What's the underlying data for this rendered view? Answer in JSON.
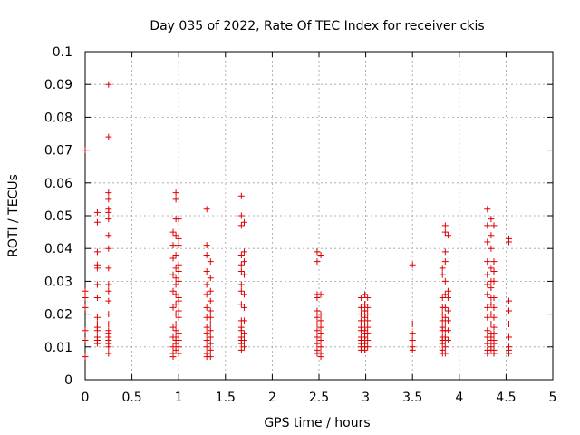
{
  "chart_data": {
    "type": "scatter",
    "title": "Day 035 of 2022, Rate Of TEC Index for receiver ckis",
    "xlabel": "GPS time / hours",
    "ylabel": "ROTI / TECUs",
    "xlim": [
      0,
      5
    ],
    "ylim": [
      0,
      0.1
    ],
    "grid": true,
    "marker": "+",
    "x_ticks": [
      {
        "value": 0,
        "label": "0"
      },
      {
        "value": 0.5,
        "label": "0.5"
      },
      {
        "value": 1,
        "label": "1"
      },
      {
        "value": 1.5,
        "label": "1.5"
      },
      {
        "value": 2,
        "label": "2"
      },
      {
        "value": 2.5,
        "label": "2.5"
      },
      {
        "value": 3,
        "label": "3"
      },
      {
        "value": 3.5,
        "label": "3.5"
      },
      {
        "value": 4,
        "label": "4"
      },
      {
        "value": 4.5,
        "label": "4.5"
      },
      {
        "value": 5,
        "label": "5"
      }
    ],
    "y_ticks": [
      {
        "value": 0,
        "label": "0"
      },
      {
        "value": 0.01,
        "label": "0.01"
      },
      {
        "value": 0.02,
        "label": "0.02"
      },
      {
        "value": 0.03,
        "label": "0.03"
      },
      {
        "value": 0.04,
        "label": "0.04"
      },
      {
        "value": 0.05,
        "label": "0.05"
      },
      {
        "value": 0.06,
        "label": "0.06"
      },
      {
        "value": 0.07,
        "label": "0.07"
      },
      {
        "value": 0.08,
        "label": "0.08"
      },
      {
        "value": 0.09,
        "label": "0.09"
      },
      {
        "value": 0.1,
        "label": "0.1"
      }
    ],
    "series": [
      {
        "name": "ROTI",
        "color": "#e00000",
        "points": [
          [
            0.0,
            0.07
          ],
          [
            0.0,
            0.027
          ],
          [
            0.0,
            0.025
          ],
          [
            0.0,
            0.022
          ],
          [
            0.0,
            0.015
          ],
          [
            0.0,
            0.012
          ],
          [
            0.0,
            0.007
          ],
          [
            0.13,
            0.051
          ],
          [
            0.13,
            0.048
          ],
          [
            0.13,
            0.039
          ],
          [
            0.13,
            0.035
          ],
          [
            0.13,
            0.034
          ],
          [
            0.13,
            0.029
          ],
          [
            0.13,
            0.025
          ],
          [
            0.13,
            0.019
          ],
          [
            0.13,
            0.017
          ],
          [
            0.13,
            0.016
          ],
          [
            0.13,
            0.015
          ],
          [
            0.13,
            0.013
          ],
          [
            0.13,
            0.012
          ],
          [
            0.13,
            0.011
          ],
          [
            0.25,
            0.09
          ],
          [
            0.25,
            0.074
          ],
          [
            0.25,
            0.057
          ],
          [
            0.25,
            0.055
          ],
          [
            0.25,
            0.052
          ],
          [
            0.25,
            0.051
          ],
          [
            0.25,
            0.049
          ],
          [
            0.25,
            0.044
          ],
          [
            0.25,
            0.04
          ],
          [
            0.25,
            0.034
          ],
          [
            0.25,
            0.029
          ],
          [
            0.25,
            0.027
          ],
          [
            0.25,
            0.024
          ],
          [
            0.25,
            0.02
          ],
          [
            0.25,
            0.017
          ],
          [
            0.25,
            0.015
          ],
          [
            0.25,
            0.014
          ],
          [
            0.25,
            0.013
          ],
          [
            0.25,
            0.012
          ],
          [
            0.25,
            0.011
          ],
          [
            0.25,
            0.01
          ],
          [
            0.25,
            0.008
          ],
          [
            0.94,
            0.045
          ],
          [
            0.94,
            0.041
          ],
          [
            0.94,
            0.037
          ],
          [
            0.94,
            0.032
          ],
          [
            0.94,
            0.027
          ],
          [
            0.94,
            0.022
          ],
          [
            0.94,
            0.016
          ],
          [
            0.94,
            0.013
          ],
          [
            0.94,
            0.01
          ],
          [
            0.94,
            0.008
          ],
          [
            0.94,
            0.007
          ],
          [
            0.97,
            0.057
          ],
          [
            0.97,
            0.055
          ],
          [
            0.97,
            0.049
          ],
          [
            0.97,
            0.044
          ],
          [
            0.97,
            0.038
          ],
          [
            0.97,
            0.034
          ],
          [
            0.97,
            0.031
          ],
          [
            0.97,
            0.029
          ],
          [
            0.97,
            0.026
          ],
          [
            0.97,
            0.023
          ],
          [
            0.97,
            0.02
          ],
          [
            0.97,
            0.017
          ],
          [
            0.97,
            0.015
          ],
          [
            0.97,
            0.013
          ],
          [
            0.97,
            0.012
          ],
          [
            0.97,
            0.011
          ],
          [
            0.97,
            0.009
          ],
          [
            1.0,
            0.049
          ],
          [
            1.0,
            0.043
          ],
          [
            1.0,
            0.041
          ],
          [
            1.0,
            0.035
          ],
          [
            1.0,
            0.033
          ],
          [
            1.0,
            0.03
          ],
          [
            1.0,
            0.025
          ],
          [
            1.0,
            0.024
          ],
          [
            1.0,
            0.021
          ],
          [
            1.0,
            0.019
          ],
          [
            1.0,
            0.014
          ],
          [
            1.0,
            0.012
          ],
          [
            1.0,
            0.01
          ],
          [
            1.0,
            0.008
          ],
          [
            1.3,
            0.052
          ],
          [
            1.3,
            0.041
          ],
          [
            1.3,
            0.038
          ],
          [
            1.3,
            0.033
          ],
          [
            1.3,
            0.029
          ],
          [
            1.3,
            0.026
          ],
          [
            1.3,
            0.022
          ],
          [
            1.3,
            0.019
          ],
          [
            1.3,
            0.016
          ],
          [
            1.3,
            0.014
          ],
          [
            1.3,
            0.012
          ],
          [
            1.3,
            0.01
          ],
          [
            1.3,
            0.008
          ],
          [
            1.3,
            0.007
          ],
          [
            1.34,
            0.036
          ],
          [
            1.34,
            0.031
          ],
          [
            1.34,
            0.027
          ],
          [
            1.34,
            0.024
          ],
          [
            1.34,
            0.021
          ],
          [
            1.34,
            0.019
          ],
          [
            1.34,
            0.017
          ],
          [
            1.34,
            0.015
          ],
          [
            1.34,
            0.013
          ],
          [
            1.34,
            0.011
          ],
          [
            1.34,
            0.009
          ],
          [
            1.34,
            0.007
          ],
          [
            1.67,
            0.056
          ],
          [
            1.67,
            0.05
          ],
          [
            1.67,
            0.047
          ],
          [
            1.67,
            0.038
          ],
          [
            1.67,
            0.035
          ],
          [
            1.67,
            0.033
          ],
          [
            1.67,
            0.029
          ],
          [
            1.67,
            0.027
          ],
          [
            1.67,
            0.023
          ],
          [
            1.67,
            0.018
          ],
          [
            1.67,
            0.016
          ],
          [
            1.67,
            0.015
          ],
          [
            1.67,
            0.013
          ],
          [
            1.67,
            0.012
          ],
          [
            1.67,
            0.011
          ],
          [
            1.67,
            0.009
          ],
          [
            1.7,
            0.048
          ],
          [
            1.7,
            0.039
          ],
          [
            1.7,
            0.036
          ],
          [
            1.7,
            0.032
          ],
          [
            1.7,
            0.026
          ],
          [
            1.7,
            0.022
          ],
          [
            1.7,
            0.018
          ],
          [
            1.7,
            0.014
          ],
          [
            1.7,
            0.012
          ],
          [
            1.7,
            0.01
          ],
          [
            2.48,
            0.039
          ],
          [
            2.48,
            0.036
          ],
          [
            2.48,
            0.026
          ],
          [
            2.48,
            0.025
          ],
          [
            2.48,
            0.021
          ],
          [
            2.48,
            0.019
          ],
          [
            2.48,
            0.017
          ],
          [
            2.48,
            0.015
          ],
          [
            2.48,
            0.013
          ],
          [
            2.48,
            0.011
          ],
          [
            2.48,
            0.009
          ],
          [
            2.48,
            0.008
          ],
          [
            2.52,
            0.038
          ],
          [
            2.52,
            0.026
          ],
          [
            2.52,
            0.02
          ],
          [
            2.52,
            0.018
          ],
          [
            2.52,
            0.016
          ],
          [
            2.52,
            0.014
          ],
          [
            2.52,
            0.012
          ],
          [
            2.52,
            0.01
          ],
          [
            2.52,
            0.008
          ],
          [
            2.52,
            0.007
          ],
          [
            2.95,
            0.025
          ],
          [
            2.95,
            0.022
          ],
          [
            2.95,
            0.02
          ],
          [
            2.95,
            0.018
          ],
          [
            2.95,
            0.016
          ],
          [
            2.95,
            0.015
          ],
          [
            2.95,
            0.013
          ],
          [
            2.95,
            0.012
          ],
          [
            2.95,
            0.011
          ],
          [
            2.95,
            0.01
          ],
          [
            2.95,
            0.009
          ],
          [
            2.99,
            0.026
          ],
          [
            2.99,
            0.023
          ],
          [
            2.99,
            0.021
          ],
          [
            2.99,
            0.019
          ],
          [
            2.99,
            0.017
          ],
          [
            2.99,
            0.015
          ],
          [
            2.99,
            0.014
          ],
          [
            2.99,
            0.013
          ],
          [
            2.99,
            0.012
          ],
          [
            2.99,
            0.011
          ],
          [
            2.99,
            0.01
          ],
          [
            2.99,
            0.009
          ],
          [
            3.02,
            0.025
          ],
          [
            3.02,
            0.022
          ],
          [
            3.02,
            0.02
          ],
          [
            3.02,
            0.018
          ],
          [
            3.02,
            0.016
          ],
          [
            3.02,
            0.014
          ],
          [
            3.02,
            0.012
          ],
          [
            3.02,
            0.01
          ],
          [
            3.5,
            0.035
          ],
          [
            3.5,
            0.017
          ],
          [
            3.5,
            0.014
          ],
          [
            3.5,
            0.012
          ],
          [
            3.5,
            0.01
          ],
          [
            3.5,
            0.009
          ],
          [
            3.82,
            0.034
          ],
          [
            3.82,
            0.032
          ],
          [
            3.82,
            0.025
          ],
          [
            3.82,
            0.022
          ],
          [
            3.82,
            0.02
          ],
          [
            3.82,
            0.018
          ],
          [
            3.82,
            0.016
          ],
          [
            3.82,
            0.015
          ],
          [
            3.82,
            0.013
          ],
          [
            3.82,
            0.012
          ],
          [
            3.82,
            0.011
          ],
          [
            3.82,
            0.009
          ],
          [
            3.82,
            0.008
          ],
          [
            3.85,
            0.047
          ],
          [
            3.85,
            0.045
          ],
          [
            3.85,
            0.039
          ],
          [
            3.85,
            0.036
          ],
          [
            3.85,
            0.03
          ],
          [
            3.85,
            0.026
          ],
          [
            3.85,
            0.022
          ],
          [
            3.85,
            0.019
          ],
          [
            3.85,
            0.017
          ],
          [
            3.85,
            0.015
          ],
          [
            3.85,
            0.013
          ],
          [
            3.85,
            0.012
          ],
          [
            3.85,
            0.01
          ],
          [
            3.85,
            0.008
          ],
          [
            3.88,
            0.044
          ],
          [
            3.88,
            0.027
          ],
          [
            3.88,
            0.025
          ],
          [
            3.88,
            0.021
          ],
          [
            3.88,
            0.018
          ],
          [
            3.88,
            0.015
          ],
          [
            3.88,
            0.012
          ],
          [
            4.3,
            0.052
          ],
          [
            4.3,
            0.047
          ],
          [
            4.3,
            0.042
          ],
          [
            4.3,
            0.036
          ],
          [
            4.3,
            0.032
          ],
          [
            4.3,
            0.029
          ],
          [
            4.3,
            0.026
          ],
          [
            4.3,
            0.022
          ],
          [
            4.3,
            0.019
          ],
          [
            4.3,
            0.015
          ],
          [
            4.3,
            0.013
          ],
          [
            4.3,
            0.011
          ],
          [
            4.3,
            0.009
          ],
          [
            4.3,
            0.008
          ],
          [
            4.34,
            0.049
          ],
          [
            4.34,
            0.044
          ],
          [
            4.34,
            0.04
          ],
          [
            4.34,
            0.034
          ],
          [
            4.34,
            0.03
          ],
          [
            4.34,
            0.028
          ],
          [
            4.34,
            0.025
          ],
          [
            4.34,
            0.023
          ],
          [
            4.34,
            0.02
          ],
          [
            4.34,
            0.017
          ],
          [
            4.34,
            0.014
          ],
          [
            4.34,
            0.013
          ],
          [
            4.34,
            0.012
          ],
          [
            4.34,
            0.01
          ],
          [
            4.34,
            0.009
          ],
          [
            4.37,
            0.047
          ],
          [
            4.37,
            0.036
          ],
          [
            4.37,
            0.033
          ],
          [
            4.37,
            0.03
          ],
          [
            4.37,
            0.025
          ],
          [
            4.37,
            0.022
          ],
          [
            4.37,
            0.019
          ],
          [
            4.37,
            0.016
          ],
          [
            4.37,
            0.014
          ],
          [
            4.37,
            0.012
          ],
          [
            4.37,
            0.011
          ],
          [
            4.37,
            0.009
          ],
          [
            4.37,
            0.008
          ],
          [
            4.53,
            0.043
          ],
          [
            4.53,
            0.042
          ],
          [
            4.53,
            0.024
          ],
          [
            4.53,
            0.021
          ],
          [
            4.53,
            0.017
          ],
          [
            4.53,
            0.013
          ],
          [
            4.53,
            0.01
          ],
          [
            4.53,
            0.009
          ],
          [
            4.53,
            0.008
          ]
        ]
      }
    ]
  }
}
